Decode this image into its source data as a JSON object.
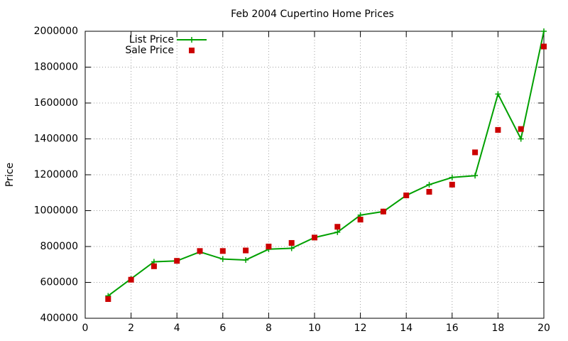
{
  "chart_data": {
    "type": "line",
    "title": "Feb 2004 Cupertino Home Prices",
    "y_label": "Price",
    "x": [
      1,
      2,
      3,
      4,
      5,
      6,
      7,
      8,
      9,
      10,
      11,
      12,
      13,
      14,
      15,
      16,
      17,
      18,
      19,
      20
    ],
    "series": [
      {
        "name": "List Price",
        "color": "#00a000",
        "line": true,
        "marker": "plus",
        "values": [
          525000,
          620000,
          715000,
          720000,
          770000,
          730000,
          725000,
          785000,
          790000,
          850000,
          880000,
          975000,
          995000,
          1085000,
          1145000,
          1185000,
          1195000,
          1650000,
          1400000,
          2000000
        ]
      },
      {
        "name": "Sale Price",
        "color": "#cc0000",
        "line": false,
        "marker": "square",
        "values": [
          507000,
          615000,
          690000,
          720000,
          775000,
          775000,
          778000,
          800000,
          820000,
          850000,
          910000,
          950000,
          995000,
          1085000,
          1105000,
          1145000,
          1325000,
          1450000,
          1455000,
          1915000
        ]
      }
    ],
    "xlim": [
      0,
      20
    ],
    "xticks": [
      0,
      2,
      4,
      6,
      8,
      10,
      12,
      14,
      16,
      18,
      20
    ],
    "ylim": [
      400000,
      2000000
    ],
    "yticks": [
      400000,
      600000,
      800000,
      1000000,
      1200000,
      1400000,
      1600000,
      1800000,
      2000000
    ],
    "grid": true,
    "legend": "top-left"
  }
}
